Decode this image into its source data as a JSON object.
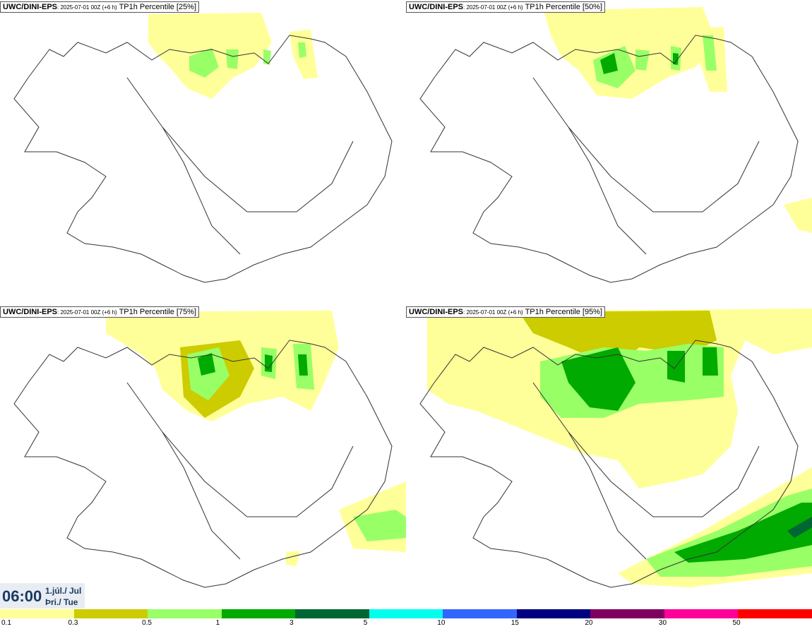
{
  "panels": [
    {
      "model": "UWC/DINI-EPS",
      "run": ": 2025-07-01 00Z (+6 h)",
      "param": " TP1h Percentile [25%]"
    },
    {
      "model": "UWC/DINI-EPS",
      "run": ": 2025-07-01 00Z (+6 h)",
      "param": " TP1h Percentile [50%]"
    },
    {
      "model": "UWC/DINI-EPS",
      "run": ": 2025-07-01 00Z (+6 h)",
      "param": " TP1h Percentile [75%]"
    },
    {
      "model": "UWC/DINI-EPS",
      "run": ": 2025-07-01 00Z (+6 h)",
      "param": " TP1h Percentile [95%]"
    }
  ],
  "time": {
    "hour": "06:00",
    "date_line1": "1.júl./ Jul",
    "date_line2": "Þri./ Tue"
  },
  "legend": {
    "colors": [
      "#ffff99",
      "#cccc00",
      "#99ff66",
      "#00aa00",
      "#006633",
      "#00ffee",
      "#3366ff",
      "#000080",
      "#800060",
      "#ff0099",
      "#ff0000"
    ],
    "labels": [
      "0.1",
      "0.3",
      "0.5",
      "1",
      "3",
      "5",
      "10",
      "15",
      "20",
      "30",
      "50"
    ]
  }
}
